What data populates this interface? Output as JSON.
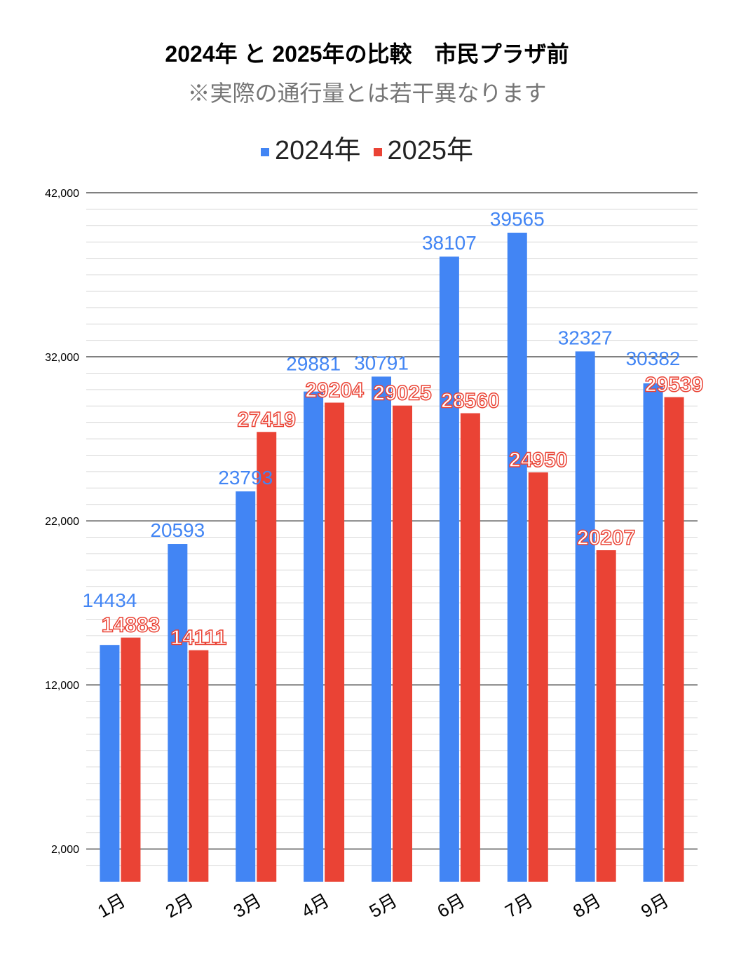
{
  "chart_data": {
    "type": "bar",
    "title": "2024年 と 2025年の比較　市民プラザ前",
    "subtitle": "※実際の通行量とは若干異なります",
    "categories": [
      "1月",
      "2月",
      "3月",
      "4月",
      "5月",
      "6月",
      "7月",
      "8月",
      "9月"
    ],
    "series": [
      {
        "name": "2024年",
        "color": "#4285f4",
        "values": [
          14434,
          20593,
          23793,
          29881,
          30791,
          38107,
          39565,
          32327,
          30382
        ]
      },
      {
        "name": "2025年",
        "color": "#ea4335",
        "values": [
          14883,
          14111,
          27419,
          29204,
          29025,
          28560,
          24950,
          20207,
          29539
        ]
      }
    ],
    "yticks": [
      "2,000",
      "12,000",
      "22,000",
      "32,000",
      "42,000"
    ],
    "ytick_values": [
      2000,
      12000,
      22000,
      32000,
      42000
    ],
    "ylim": [
      0,
      42000
    ],
    "minor_step": 1000,
    "legend": "top",
    "grid": true
  }
}
